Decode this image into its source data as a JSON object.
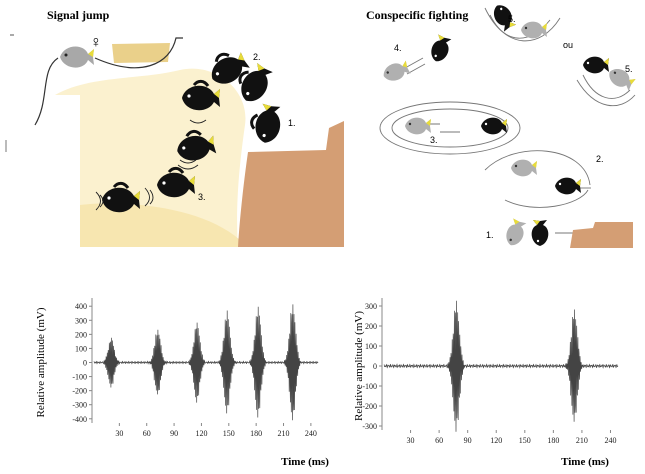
{
  "panels": {
    "left_title": "Signal jump",
    "right_title": "Conspecific fighting",
    "female_symbol": "♀",
    "left_steps": [
      "1.",
      "2.",
      "3."
    ],
    "right_steps": [
      "1.",
      "2.",
      "3.",
      "4.",
      "5.",
      "5."
    ],
    "or_label": "ou"
  },
  "chart_data": [
    {
      "type": "line",
      "title": "",
      "xlabel": "Time (ms)",
      "ylabel": "Relative amplitude (mV)",
      "xticks": [
        30,
        60,
        90,
        120,
        150,
        180,
        210,
        240
      ],
      "yticks": [
        400,
        300,
        200,
        100,
        0,
        -100,
        -200,
        -300,
        -400
      ],
      "xlim": [
        0,
        250
      ],
      "ylim": [
        -430,
        430
      ],
      "pulses": [
        {
          "center_ms": 21,
          "peak_mV": 180
        },
        {
          "center_ms": 72,
          "peak_mV": 240
        },
        {
          "center_ms": 115,
          "peak_mV": 290
        },
        {
          "center_ms": 148,
          "peak_mV": 370
        },
        {
          "center_ms": 182,
          "peak_mV": 400
        },
        {
          "center_ms": 220,
          "peak_mV": 420
        }
      ]
    },
    {
      "type": "line",
      "title": "",
      "xlabel": "Time (ms)",
      "ylabel": "Relative amplitude (mV)",
      "xticks": [
        30,
        60,
        90,
        120,
        150,
        180,
        210,
        240
      ],
      "yticks": [
        300,
        200,
        100,
        0,
        -100,
        -200,
        -300
      ],
      "xlim": [
        0,
        250
      ],
      "ylim": [
        -320,
        320
      ],
      "pulses": [
        {
          "center_ms": 78,
          "peak_mV": 330
        },
        {
          "center_ms": 202,
          "peak_mV": 290
        }
      ]
    }
  ]
}
